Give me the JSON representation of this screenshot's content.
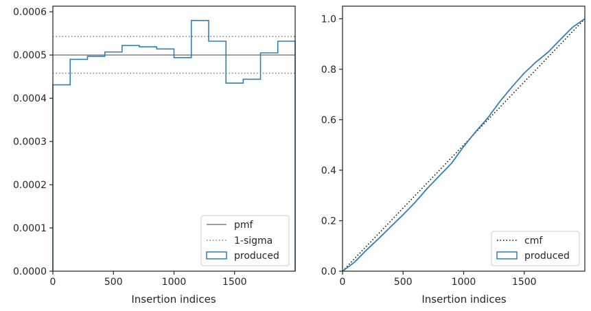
{
  "chart_data": [
    {
      "type": "histogram",
      "xlabel": "Insertion indices",
      "ylabel": "",
      "xlim": [
        0,
        2000
      ],
      "ylim": [
        0,
        0.000613
      ],
      "xticks": [
        0,
        500,
        1000,
        1500
      ],
      "xtick_labels": [
        "0",
        "500",
        "1000",
        "1500"
      ],
      "yticks": [
        0,
        0.0001,
        0.0002,
        0.0003,
        0.0004,
        0.0005,
        0.0006
      ],
      "ytick_labels": [
        "0.0000",
        "0.0001",
        "0.0002",
        "0.0003",
        "0.0004",
        "0.0005",
        "0.0006"
      ],
      "legend_position": "lower-right",
      "reference_lines": [
        {
          "name": "pmf",
          "style": "solid",
          "color": "#808080",
          "y": 0.0005
        },
        {
          "name": "1-sigma",
          "style": "dotted",
          "color": "#808080",
          "y": [
            0.000458,
            0.000543
          ]
        }
      ],
      "series": [
        {
          "name": "produced",
          "color": "#2f7fb4",
          "bin_edges": [
            0,
            143,
            286,
            429,
            571,
            714,
            857,
            1000,
            1143,
            1286,
            1429,
            1571,
            1714,
            1857,
            2000
          ],
          "values": [
            0.000431,
            0.00049,
            0.000497,
            0.000507,
            0.000522,
            0.000519,
            0.000514,
            0.000494,
            0.00058,
            0.000532,
            0.000435,
            0.000444,
            0.000505,
            0.000532
          ]
        }
      ]
    },
    {
      "type": "line",
      "xlabel": "Insertion indices",
      "ylabel": "",
      "xlim": [
        0,
        2000
      ],
      "ylim": [
        0,
        1.05
      ],
      "xticks": [
        0,
        500,
        1000,
        1500
      ],
      "xtick_labels": [
        "0",
        "500",
        "1000",
        "1500"
      ],
      "yticks": [
        0,
        0.2,
        0.4,
        0.6,
        0.8,
        1.0
      ],
      "ytick_labels": [
        "0.0",
        "0.2",
        "0.4",
        "0.6",
        "0.8",
        "1.0"
      ],
      "legend_position": "lower-right",
      "series": [
        {
          "name": "cmf",
          "style": "dotted",
          "color": "#000000",
          "x": [
            0,
            2000
          ],
          "y": [
            0,
            1.0
          ]
        },
        {
          "name": "produced",
          "style": "step",
          "color": "#2f7fb4",
          "x": [
            0,
            100,
            200,
            300,
            400,
            500,
            600,
            700,
            800,
            900,
            1000,
            1100,
            1200,
            1300,
            1400,
            1500,
            1600,
            1700,
            1800,
            1900,
            2000
          ],
          "y": [
            0,
            0.036,
            0.085,
            0.13,
            0.177,
            0.224,
            0.273,
            0.328,
            0.378,
            0.428,
            0.494,
            0.553,
            0.608,
            0.673,
            0.731,
            0.785,
            0.83,
            0.869,
            0.919,
            0.967,
            1.0
          ]
        }
      ]
    }
  ]
}
